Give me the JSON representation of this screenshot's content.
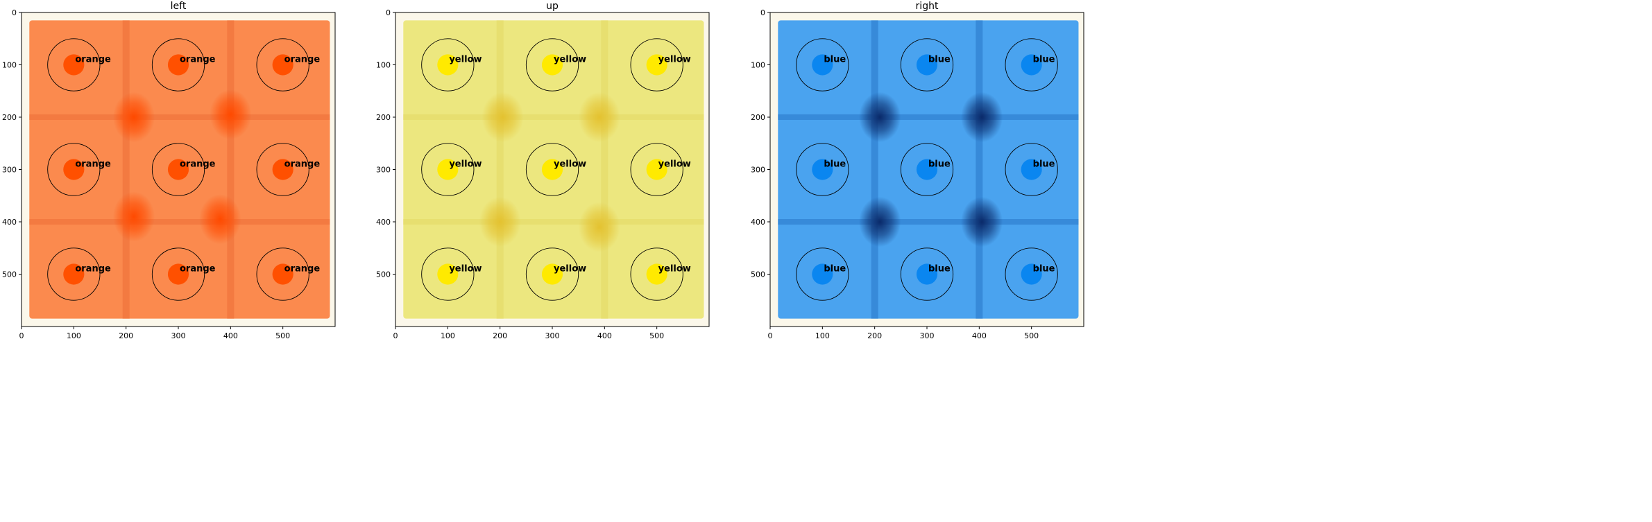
{
  "chart_data": [
    {
      "type": "heatmap",
      "title": "left",
      "xlim": [
        0,
        600
      ],
      "ylim": [
        600,
        0
      ],
      "x_ticks": [
        0,
        100,
        200,
        300,
        400,
        500
      ],
      "y_ticks": [
        0,
        100,
        200,
        300,
        400,
        500
      ],
      "background_color": "#fb8a4e",
      "seam_color": "#f0743c",
      "hotspot_color": "#ff4a00",
      "hotspots": [
        {
          "x": 215,
          "y": 200
        },
        {
          "x": 400,
          "y": 195
        },
        {
          "x": 215,
          "y": 390
        },
        {
          "x": 380,
          "y": 395
        }
      ],
      "markers": [
        {
          "x": 100,
          "y": 100,
          "label": "orange",
          "color": "#ff5000"
        },
        {
          "x": 300,
          "y": 100,
          "label": "orange",
          "color": "#ff5000"
        },
        {
          "x": 500,
          "y": 100,
          "label": "orange",
          "color": "#ff5000"
        },
        {
          "x": 100,
          "y": 300,
          "label": "orange",
          "color": "#ff5000"
        },
        {
          "x": 300,
          "y": 300,
          "label": "orange",
          "color": "#ff5000"
        },
        {
          "x": 500,
          "y": 300,
          "label": "orange",
          "color": "#ff5000"
        },
        {
          "x": 100,
          "y": 500,
          "label": "orange",
          "color": "#ff5000"
        },
        {
          "x": 300,
          "y": 500,
          "label": "orange",
          "color": "#ff5000"
        },
        {
          "x": 500,
          "y": 500,
          "label": "orange",
          "color": "#ff5000"
        }
      ],
      "ring_radius": 50,
      "dot_radius": 20
    },
    {
      "type": "heatmap",
      "title": "up",
      "xlim": [
        0,
        600
      ],
      "ylim": [
        600,
        0
      ],
      "x_ticks": [
        0,
        100,
        200,
        300,
        400,
        500
      ],
      "y_ticks": [
        0,
        100,
        200,
        300,
        400,
        500
      ],
      "background_color": "#ece77f",
      "seam_color": "#e6dc6a",
      "hotspot_color": "#e4c230",
      "hotspots": [
        {
          "x": 205,
          "y": 200
        },
        {
          "x": 390,
          "y": 200
        },
        {
          "x": 200,
          "y": 400
        },
        {
          "x": 390,
          "y": 410
        }
      ],
      "markers": [
        {
          "x": 100,
          "y": 100,
          "label": "yellow",
          "color": "#ffea00"
        },
        {
          "x": 300,
          "y": 100,
          "label": "yellow",
          "color": "#ffea00"
        },
        {
          "x": 500,
          "y": 100,
          "label": "yellow",
          "color": "#ffea00"
        },
        {
          "x": 100,
          "y": 300,
          "label": "yellow",
          "color": "#ffea00"
        },
        {
          "x": 300,
          "y": 300,
          "label": "yellow",
          "color": "#ffea00"
        },
        {
          "x": 500,
          "y": 300,
          "label": "yellow",
          "color": "#ffea00"
        },
        {
          "x": 100,
          "y": 500,
          "label": "yellow",
          "color": "#ffea00"
        },
        {
          "x": 300,
          "y": 500,
          "label": "yellow",
          "color": "#ffea00"
        },
        {
          "x": 500,
          "y": 500,
          "label": "yellow",
          "color": "#ffea00"
        }
      ],
      "ring_radius": 50,
      "dot_radius": 20
    },
    {
      "type": "heatmap",
      "title": "right",
      "xlim": [
        0,
        600
      ],
      "ylim": [
        600,
        0
      ],
      "x_ticks": [
        0,
        100,
        200,
        300,
        400,
        500
      ],
      "y_ticks": [
        0,
        100,
        200,
        300,
        400,
        500
      ],
      "background_color": "#4aa3ef",
      "seam_color": "#2f7fd0",
      "hotspot_color": "#0a2a6a",
      "hotspots": [
        {
          "x": 210,
          "y": 200
        },
        {
          "x": 405,
          "y": 200
        },
        {
          "x": 210,
          "y": 400
        },
        {
          "x": 405,
          "y": 400
        }
      ],
      "markers": [
        {
          "x": 100,
          "y": 100,
          "label": "blue",
          "color": "#0a86f0"
        },
        {
          "x": 300,
          "y": 100,
          "label": "blue",
          "color": "#0a86f0"
        },
        {
          "x": 500,
          "y": 100,
          "label": "blue",
          "color": "#0a86f0"
        },
        {
          "x": 100,
          "y": 300,
          "label": "blue",
          "color": "#0a86f0"
        },
        {
          "x": 300,
          "y": 300,
          "label": "blue",
          "color": "#0a86f0"
        },
        {
          "x": 500,
          "y": 300,
          "label": "blue",
          "color": "#0a86f0"
        },
        {
          "x": 100,
          "y": 500,
          "label": "blue",
          "color": "#0a86f0"
        },
        {
          "x": 300,
          "y": 500,
          "label": "blue",
          "color": "#0a86f0"
        },
        {
          "x": 500,
          "y": 500,
          "label": "blue",
          "color": "#0a86f0"
        }
      ],
      "ring_radius": 50,
      "dot_radius": 20
    }
  ]
}
